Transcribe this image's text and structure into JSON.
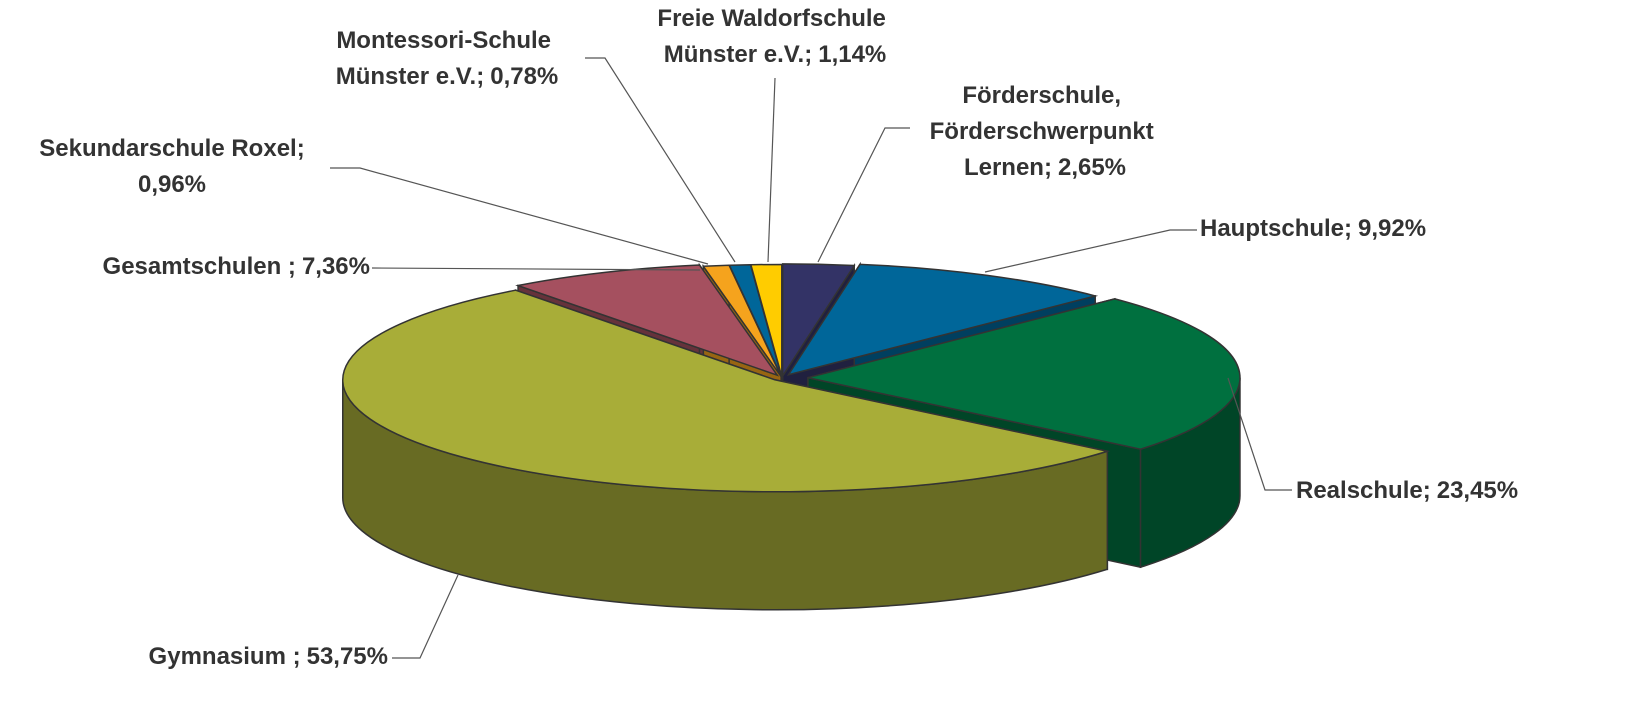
{
  "chart_data": {
    "type": "pie3d",
    "categories": [
      "Förderschule, Förderschwerpunkt Lernen;",
      "Hauptschule;",
      "Realschule;",
      "Gymnasium ;",
      "Gesamtschulen ;",
      "Sekundarschule Roxel;",
      "Montessori-Schule Münster e.V.;",
      "Freie Waldorfschule Münster e.V.;"
    ],
    "values": [
      2.65,
      9.92,
      23.45,
      53.75,
      7.36,
      0.96,
      0.78,
      1.14
    ],
    "value_labels": [
      "2,65%",
      "9,92%",
      "23,45%",
      "53,75%",
      "7,36%",
      "0,96%",
      "0,78%",
      "1,14%"
    ],
    "colors": [
      "#333366",
      "#006699",
      "#00703f",
      "#a8ad38",
      "#a5505f",
      "#f5a31d",
      "#006699",
      "#ffcc00"
    ]
  }
}
